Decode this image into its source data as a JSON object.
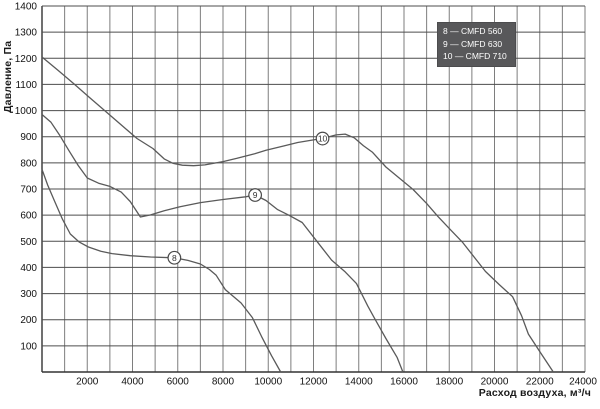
{
  "axes": {
    "y_title": "Давление, Па",
    "x_title": "Расход воздуха, м³/ч"
  },
  "legend": {
    "items": [
      "8 — CMFD 560",
      "9 — CMFD 630",
      "10 — CMFD 710"
    ],
    "bg": "#58585a",
    "fg": "#ffffff"
  },
  "chart_data": {
    "type": "line",
    "title": "",
    "xlabel": "Расход воздуха, м³/ч",
    "ylabel": "Давление, Па",
    "xlim": [
      0,
      24000
    ],
    "ylim": [
      0,
      1400
    ],
    "x_label_step": 2000,
    "x_grid_step": 1000,
    "y_grid_step": 100,
    "y_label_step": 100,
    "grid": true,
    "legend_position": "top-right-inside",
    "colors": {
      "curve": "#5a5a5a",
      "grid_h": "#4d4d4d",
      "grid_v": "#7e7e7e",
      "axis": "#333333",
      "tick_text": "#111111",
      "marker_fill": "#ffffff",
      "marker_stroke": "#4a4a4a"
    },
    "series": [
      {
        "name": "CMFD 560",
        "marker": {
          "label": "8",
          "x": 5850,
          "y": 437
        },
        "points": [
          [
            0,
            775
          ],
          [
            250,
            715
          ],
          [
            550,
            655
          ],
          [
            900,
            585
          ],
          [
            1250,
            528
          ],
          [
            1650,
            497
          ],
          [
            2050,
            478
          ],
          [
            2600,
            462
          ],
          [
            3100,
            453
          ],
          [
            3900,
            445
          ],
          [
            4800,
            440
          ],
          [
            5850,
            437
          ],
          [
            6450,
            427
          ],
          [
            7000,
            413
          ],
          [
            7400,
            392
          ],
          [
            7700,
            370
          ],
          [
            8100,
            315
          ],
          [
            8800,
            264
          ],
          [
            9300,
            208
          ],
          [
            9700,
            136
          ],
          [
            10150,
            62
          ],
          [
            10550,
            0
          ]
        ]
      },
      {
        "name": "CMFD 630",
        "marker": {
          "label": "9",
          "x": 9420,
          "y": 677
        },
        "points": [
          [
            0,
            985
          ],
          [
            400,
            955
          ],
          [
            800,
            903
          ],
          [
            1200,
            845
          ],
          [
            1600,
            790
          ],
          [
            2000,
            742
          ],
          [
            2500,
            722
          ],
          [
            3000,
            710
          ],
          [
            3500,
            688
          ],
          [
            3900,
            652
          ],
          [
            4350,
            593
          ],
          [
            4800,
            601
          ],
          [
            5400,
            617
          ],
          [
            6100,
            632
          ],
          [
            7000,
            648
          ],
          [
            8000,
            660
          ],
          [
            9000,
            670
          ],
          [
            9420,
            677
          ],
          [
            9900,
            656
          ],
          [
            10400,
            622
          ],
          [
            10900,
            600
          ],
          [
            11500,
            572
          ],
          [
            12150,
            500
          ],
          [
            12800,
            428
          ],
          [
            13400,
            383
          ],
          [
            13900,
            338
          ],
          [
            14400,
            252
          ],
          [
            14700,
            205
          ],
          [
            15200,
            128
          ],
          [
            15700,
            55
          ],
          [
            15950,
            0
          ]
        ]
      },
      {
        "name": "CMFD 710",
        "marker": {
          "label": "10",
          "x": 12400,
          "y": 893
        },
        "points": [
          [
            0,
            1205
          ],
          [
            700,
            1155
          ],
          [
            1400,
            1103
          ],
          [
            2100,
            1050
          ],
          [
            2800,
            998
          ],
          [
            3500,
            945
          ],
          [
            4200,
            893
          ],
          [
            4900,
            855
          ],
          [
            5400,
            815
          ],
          [
            5800,
            798
          ],
          [
            6200,
            791
          ],
          [
            6700,
            789
          ],
          [
            7200,
            792
          ],
          [
            8000,
            805
          ],
          [
            8600,
            817
          ],
          [
            9400,
            835
          ],
          [
            9900,
            848
          ],
          [
            10700,
            865
          ],
          [
            11300,
            878
          ],
          [
            12000,
            888
          ],
          [
            12400,
            893
          ],
          [
            13000,
            907
          ],
          [
            13400,
            910
          ],
          [
            13800,
            896
          ],
          [
            14200,
            866
          ],
          [
            14600,
            841
          ],
          [
            15200,
            784
          ],
          [
            15800,
            741
          ],
          [
            16400,
            698
          ],
          [
            17000,
            645
          ],
          [
            17500,
            595
          ],
          [
            18100,
            540
          ],
          [
            18600,
            495
          ],
          [
            19100,
            440
          ],
          [
            19600,
            385
          ],
          [
            20200,
            335
          ],
          [
            20800,
            288
          ],
          [
            21200,
            215
          ],
          [
            21500,
            145
          ],
          [
            22000,
            78
          ],
          [
            22600,
            0
          ]
        ]
      }
    ]
  }
}
